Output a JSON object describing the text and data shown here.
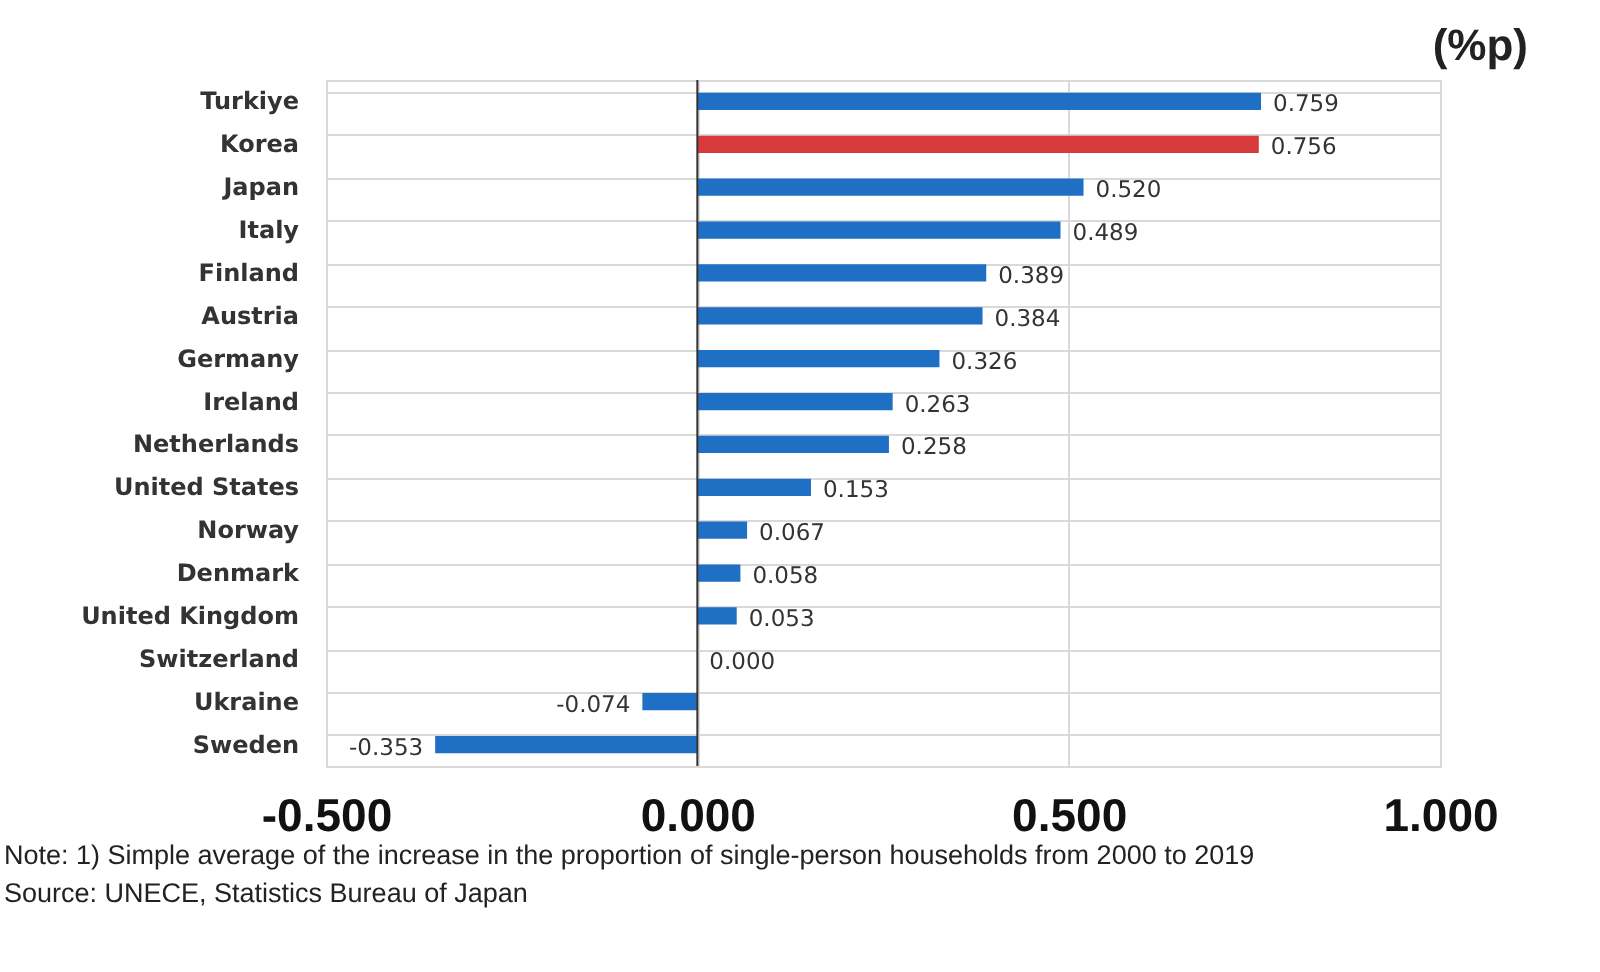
{
  "chart_data": {
    "type": "bar",
    "orientation": "horizontal",
    "xlabel": "(%p)",
    "categories": [
      "Turkiye",
      "Korea",
      "Japan",
      "Italy",
      "Finland",
      "Austria",
      "Germany",
      "Ireland",
      "Netherlands",
      "United States",
      "Norway",
      "Denmark",
      "United Kingdom",
      "Switzerland",
      "Ukraine",
      "Sweden"
    ],
    "values": [
      0.759,
      0.756,
      0.52,
      0.489,
      0.389,
      0.384,
      0.326,
      0.263,
      0.258,
      0.153,
      0.067,
      0.058,
      0.053,
      0,
      -0.074,
      -0.353
    ],
    "value_labels": [
      "0.759",
      "0.756",
      "0.520",
      "0.489",
      "0.389",
      "0.384",
      "0.326",
      "0.263",
      "0.258",
      "0.153",
      "0.067",
      "0.058",
      "0.053",
      "0.000",
      "-0.074",
      "-0.353"
    ],
    "colors": [
      "#1f6fc5",
      "#d63a3a",
      "#1f6fc5",
      "#1f6fc5",
      "#1f6fc5",
      "#1f6fc5",
      "#1f6fc5",
      "#1f6fc5",
      "#1f6fc5",
      "#1f6fc5",
      "#1f6fc5",
      "#1f6fc5",
      "#1f6fc5",
      "#1f6fc5",
      "#1f6fc5",
      "#1f6fc5"
    ],
    "xlim": [
      -0.5,
      1.0
    ],
    "xticks": [
      {
        "value": -0.5,
        "label": "-0.500"
      },
      {
        "value": 0,
        "label": "0.000"
      },
      {
        "value": 0.5,
        "label": "0.500"
      },
      {
        "value": 1.0,
        "label": "1.000"
      }
    ],
    "grid": true,
    "annotations": [
      "Note: 1) Simple average of the increase in the proportion of single-person households from 2000 to 2019",
      "Source: UNECE, Statistics Bureau of Japan"
    ]
  }
}
